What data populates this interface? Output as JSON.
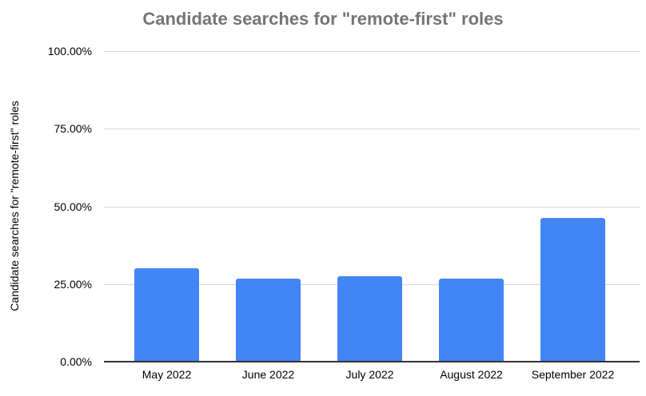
{
  "chart_data": {
    "type": "bar",
    "title": "Candidate searches for \"remote-first\" roles",
    "ylabel": "Candidate searches for \"remote-first\" roles",
    "xlabel": "",
    "categories": [
      "May 2022",
      "June 2022",
      "July 2022",
      "August 2022",
      "September 2022"
    ],
    "values": [
      30.0,
      26.7,
      27.5,
      26.7,
      46.2
    ],
    "value_unit": "%",
    "ylim": [
      0,
      100
    ],
    "ytick_values": [
      0,
      25,
      50,
      75,
      100
    ],
    "ytick_labels": [
      "0.00%",
      "25.00%",
      "50.00%",
      "75.00%",
      "100.00%"
    ],
    "grid": true,
    "legend": false,
    "bar_color": "#4285F4"
  },
  "colors": {
    "bar": "#4285F4",
    "title_text": "#757575",
    "axis_line": "#333333",
    "gridline": "#dadada",
    "tick_text": "#000000",
    "background": "#ffffff"
  }
}
